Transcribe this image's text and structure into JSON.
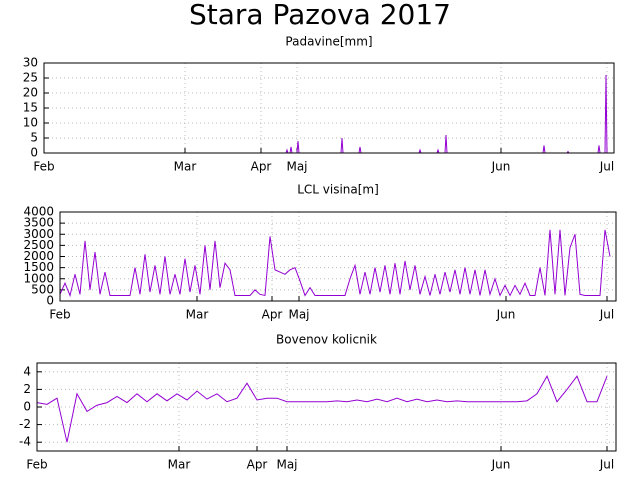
{
  "title": "Stara Pazova 2017",
  "chart_data": [
    {
      "type": "line",
      "title": "Padavine[mm]",
      "color": "#9400d3",
      "grid": true,
      "xlim": [
        0,
        570
      ],
      "ylim": [
        0,
        30
      ],
      "yticks": [
        0,
        5,
        10,
        15,
        20,
        25,
        30
      ],
      "xticks": [
        {
          "value": 0,
          "label": "Feb"
        },
        {
          "value": 141,
          "label": "Mar"
        },
        {
          "value": 217,
          "label": "Apr"
        },
        {
          "value": 253,
          "label": "Maj"
        },
        {
          "value": 457,
          "label": "Jun"
        },
        {
          "value": 563,
          "label": "Jul"
        }
      ],
      "x": [
        0,
        242,
        243,
        244,
        246,
        247,
        248,
        253,
        254,
        255,
        297,
        298,
        299,
        315,
        316,
        317,
        375,
        376,
        377,
        393,
        394,
        395,
        401,
        402,
        403,
        499,
        500,
        501,
        523,
        524,
        525,
        554,
        555,
        556,
        561,
        562,
        563,
        566
      ],
      "values": [
        0,
        0,
        1,
        0,
        0,
        2,
        0,
        0,
        4,
        0,
        0,
        5,
        0,
        0,
        2,
        0,
        0,
        1,
        0,
        0,
        1,
        0,
        0,
        6,
        0,
        0,
        2.5,
        0,
        0,
        0.5,
        0,
        0,
        2.5,
        0,
        0,
        26,
        0,
        0
      ]
    },
    {
      "type": "line",
      "title": "LCL visina[m]",
      "color": "#9400d3",
      "grid": true,
      "xlim": [
        0,
        556
      ],
      "ylim": [
        0,
        4000
      ],
      "yticks": [
        0,
        500,
        1000,
        1500,
        2000,
        2500,
        3000,
        3500,
        4000
      ],
      "xticks": [
        {
          "value": 0,
          "label": "Feb"
        },
        {
          "value": 137,
          "label": "Mar"
        },
        {
          "value": 212,
          "label": "Apr"
        },
        {
          "value": 239,
          "label": "Maj"
        },
        {
          "value": 446,
          "label": "Jun"
        },
        {
          "value": 547,
          "label": "Jul"
        }
      ],
      "x": [
        0,
        5,
        10,
        15,
        20,
        25,
        30,
        35,
        40,
        45,
        50,
        55,
        60,
        65,
        70,
        75,
        80,
        85,
        90,
        95,
        100,
        105,
        110,
        115,
        120,
        125,
        130,
        135,
        140,
        145,
        150,
        155,
        160,
        165,
        170,
        175,
        180,
        185,
        190,
        195,
        200,
        205,
        210,
        215,
        220,
        225,
        230,
        235,
        240,
        245,
        250,
        255,
        260,
        265,
        270,
        275,
        280,
        285,
        290,
        295,
        300,
        305,
        310,
        315,
        320,
        325,
        330,
        335,
        340,
        345,
        350,
        355,
        360,
        365,
        370,
        375,
        380,
        385,
        390,
        395,
        400,
        405,
        410,
        415,
        420,
        425,
        430,
        435,
        440,
        445,
        450,
        455,
        460,
        465,
        470,
        475,
        480,
        485,
        490,
        495,
        500,
        505,
        510,
        515,
        520,
        525,
        530,
        535,
        540,
        545,
        550
      ],
      "values": [
        300,
        800,
        250,
        1200,
        300,
        2700,
        500,
        2200,
        300,
        1300,
        250,
        250,
        250,
        250,
        250,
        1500,
        300,
        2100,
        400,
        1600,
        300,
        2000,
        300,
        1200,
        300,
        1900,
        400,
        1600,
        300,
        2500,
        500,
        2700,
        600,
        1700,
        1400,
        250,
        250,
        250,
        250,
        500,
        300,
        250,
        2900,
        1400,
        1300,
        1200,
        1400,
        1500,
        900,
        250,
        600,
        250,
        250,
        250,
        250,
        250,
        250,
        250,
        1000,
        1600,
        300,
        1300,
        300,
        1500,
        400,
        1600,
        300,
        1700,
        300,
        1800,
        500,
        1600,
        300,
        1100,
        250,
        1200,
        300,
        1300,
        400,
        1400,
        300,
        1500,
        300,
        1400,
        250,
        1400,
        300,
        1000,
        250,
        700,
        250,
        700,
        300,
        800,
        250,
        250,
        1500,
        250,
        3200,
        300,
        3200,
        250,
        2400,
        3000,
        300,
        250,
        250,
        250,
        250,
        3200,
        2000
      ]
    },
    {
      "type": "line",
      "title": "Bovenov kolicnik",
      "color": "#9400d3",
      "grid": true,
      "xlim": [
        0,
        579
      ],
      "ylim": [
        -5,
        5
      ],
      "yticks": [
        -4,
        -2,
        0,
        2,
        4
      ],
      "xticks": [
        {
          "value": 0,
          "label": "Feb"
        },
        {
          "value": 142,
          "label": "Mar"
        },
        {
          "value": 220,
          "label": "Apr"
        },
        {
          "value": 250,
          "label": "Maj"
        },
        {
          "value": 464,
          "label": "Jun"
        },
        {
          "value": 570,
          "label": "Jul"
        }
      ],
      "x": [
        0,
        10,
        20,
        30,
        40,
        50,
        60,
        70,
        80,
        90,
        100,
        110,
        120,
        130,
        140,
        150,
        160,
        170,
        180,
        190,
        200,
        210,
        220,
        230,
        240,
        250,
        260,
        270,
        280,
        290,
        300,
        310,
        320,
        330,
        340,
        350,
        360,
        370,
        380,
        390,
        400,
        410,
        420,
        430,
        440,
        450,
        460,
        470,
        480,
        490,
        500,
        510,
        520,
        530,
        540,
        550,
        560,
        570
      ],
      "values": [
        0.5,
        0.3,
        1.0,
        -4,
        1.5,
        -0.5,
        0.2,
        0.5,
        1.2,
        0.5,
        1.5,
        0.6,
        1.5,
        0.7,
        1.5,
        0.8,
        1.8,
        0.9,
        1.5,
        0.6,
        1.0,
        2.7,
        0.8,
        1.0,
        1.0,
        0.6,
        0.6,
        0.6,
        0.6,
        0.6,
        0.7,
        0.6,
        0.8,
        0.6,
        0.9,
        0.6,
        1.0,
        0.6,
        0.9,
        0.6,
        0.8,
        0.6,
        0.7,
        0.6,
        0.6,
        0.6,
        0.6,
        0.6,
        0.6,
        0.7,
        1.5,
        3.5,
        0.6,
        2.0,
        3.5,
        0.6,
        0.6,
        3.5
      ]
    }
  ]
}
